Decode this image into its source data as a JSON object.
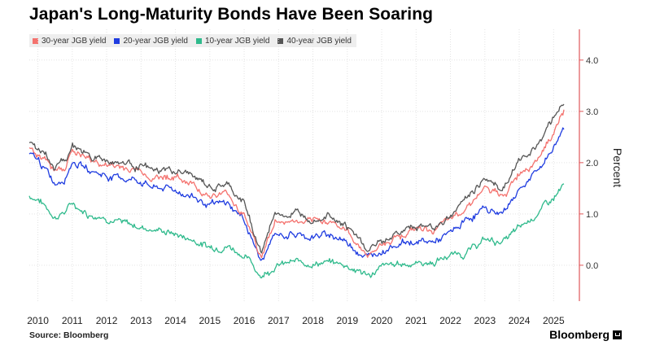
{
  "header": {
    "title": "Japan's Long-Maturity Bonds Have Been Soaring"
  },
  "footer": {
    "source_label": "Source:",
    "source_value": "Bloomberg",
    "brand": "Bloomberg"
  },
  "colors": {
    "s30": "#f4726e",
    "s20": "#1f3ce0",
    "s10": "#2fba8c",
    "s40": "#555555",
    "axis": "#e0585a",
    "grid": "#e3e3e3"
  },
  "chart_data": {
    "type": "line",
    "title": "Japan's Long-Maturity Bonds Have Been Soaring",
    "xlabel": "",
    "ylabel": "Percent",
    "xlim": [
      2009.75,
      2025.75
    ],
    "ylim": [
      -0.7,
      4.6
    ],
    "y_ticks": [
      0.0,
      1.0,
      2.0,
      3.0,
      4.0
    ],
    "y_tick_labels": [
      "0.0",
      "1.0",
      "2.0",
      "3.0",
      "4.0"
    ],
    "x_ticks": [
      2010,
      2011,
      2012,
      2013,
      2014,
      2015,
      2016,
      2017,
      2018,
      2019,
      2020,
      2021,
      2022,
      2023,
      2024,
      2025
    ],
    "x_tick_labels": [
      "2010",
      "2011",
      "2012",
      "2013",
      "2014",
      "2015",
      "2016",
      "2017",
      "2018",
      "2019",
      "2020",
      "2021",
      "2022",
      "2023",
      "2024",
      "2025"
    ],
    "legend_position": "top-left",
    "x": [
      2009.75,
      2010.0,
      2010.5,
      2010.8,
      2011.0,
      2011.5,
      2012.0,
      2012.5,
      2013.0,
      2013.4,
      2013.8,
      2014.5,
      2015.0,
      2015.5,
      2016.0,
      2016.5,
      2016.9,
      2017.5,
      2018.0,
      2018.5,
      2019.0,
      2019.6,
      2020.0,
      2020.5,
      2021.0,
      2021.5,
      2022.0,
      2022.5,
      2023.0,
      2023.5,
      2024.0,
      2024.5,
      2025.0,
      2025.3
    ],
    "series": [
      {
        "name": "30-year JGB yield",
        "color": "#f4726e",
        "values": [
          2.3,
          2.2,
          1.8,
          1.95,
          2.25,
          2.05,
          1.95,
          1.9,
          1.85,
          1.7,
          1.75,
          1.6,
          1.35,
          1.4,
          1.0,
          0.15,
          0.85,
          0.85,
          0.8,
          0.9,
          0.65,
          0.2,
          0.4,
          0.6,
          0.7,
          0.7,
          0.85,
          1.2,
          1.5,
          1.3,
          1.8,
          2.1,
          2.6,
          3.0
        ]
      },
      {
        "name": "20-year JGB yield",
        "color": "#1f3ce0",
        "values": [
          2.15,
          2.05,
          1.6,
          1.75,
          2.05,
          1.85,
          1.75,
          1.7,
          1.65,
          1.5,
          1.5,
          1.35,
          1.15,
          1.2,
          0.9,
          0.05,
          0.6,
          0.6,
          0.55,
          0.6,
          0.45,
          0.15,
          0.3,
          0.45,
          0.45,
          0.45,
          0.6,
          0.9,
          1.1,
          1.0,
          1.5,
          1.8,
          2.3,
          2.7
        ]
      },
      {
        "name": "10-year JGB yield",
        "color": "#2fba8c",
        "values": [
          1.35,
          1.3,
          0.95,
          1.05,
          1.2,
          1.0,
          0.95,
          0.8,
          0.75,
          0.7,
          0.65,
          0.5,
          0.35,
          0.4,
          0.2,
          -0.2,
          0.0,
          0.05,
          0.05,
          0.05,
          0.0,
          -0.2,
          -0.05,
          0.02,
          0.05,
          0.05,
          0.2,
          0.25,
          0.5,
          0.45,
          0.7,
          1.0,
          1.3,
          1.55
        ]
      },
      {
        "name": "40-year JGB yield",
        "color": "#555555",
        "values": [
          2.4,
          2.3,
          1.9,
          2.05,
          2.35,
          2.15,
          2.05,
          2.0,
          1.95,
          1.8,
          1.85,
          1.75,
          1.5,
          1.55,
          1.2,
          0.25,
          1.0,
          1.0,
          0.95,
          1.05,
          0.75,
          0.3,
          0.45,
          0.65,
          0.75,
          0.75,
          0.95,
          1.35,
          1.7,
          1.5,
          2.0,
          2.35,
          2.9,
          3.2
        ]
      }
    ]
  }
}
